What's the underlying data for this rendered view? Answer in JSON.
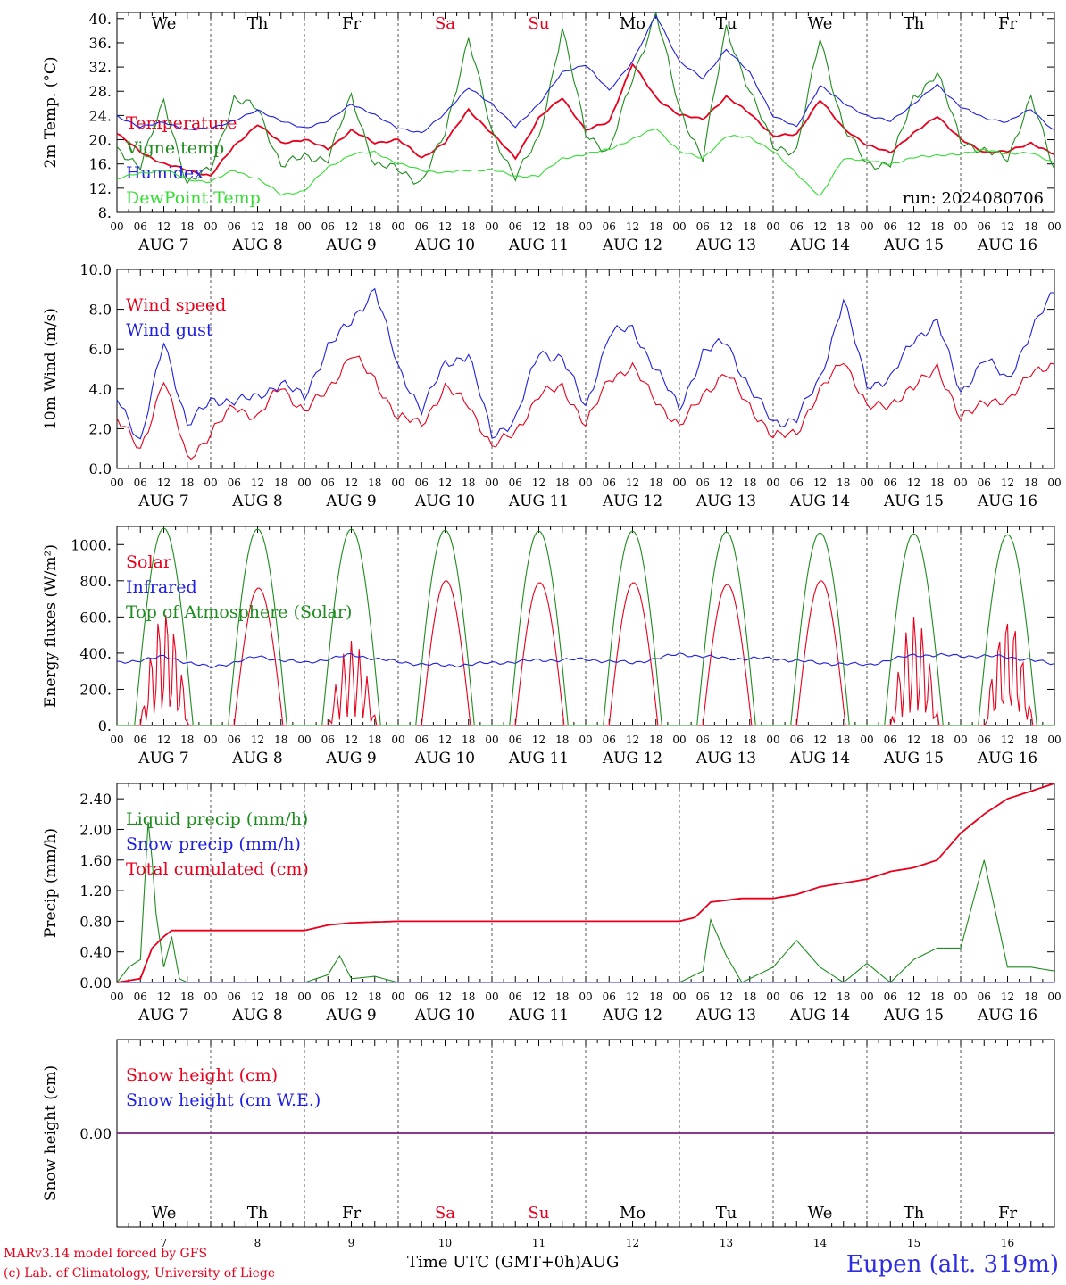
{
  "run_label": "run: 2024080706",
  "days": {
    "weekdays": [
      "We",
      "Th",
      "Fr",
      "Sa",
      "Su",
      "Mo",
      "Tu",
      "We",
      "Th",
      "Fr"
    ],
    "weekend_flags": [
      false,
      false,
      false,
      true,
      true,
      false,
      false,
      false,
      false,
      false
    ],
    "date_labels": [
      "AUG  7",
      "AUG  8",
      "AUG  9",
      "AUG 10",
      "AUG 11",
      "AUG 12",
      "AUG 13",
      "AUG 14",
      "AUG 15",
      "AUG 16"
    ],
    "day_numbers": [
      "7",
      "8",
      "9",
      "10",
      "11",
      "12",
      "13",
      "14",
      "15",
      "16"
    ],
    "hour_ticks": [
      "00",
      "06",
      "12",
      "18"
    ],
    "final_tick": "00"
  },
  "colors": {
    "red": "#e8001c",
    "blue": "#2020e0",
    "green": "#1e8c1e",
    "lightgreen": "#33dd33",
    "purple": "#7a1f7a",
    "grid": "#555555"
  },
  "footer": {
    "credit_line1": "MARv3.14 model forced by GFS",
    "credit_line2": "(c) Lab. of Climatology, University of Liege",
    "x_title": "Time UTC (GMT+0h)AUG",
    "station": "Eupen (alt. 319m)"
  },
  "chart_data": [
    {
      "id": "temp",
      "type": "line",
      "ylabel": "2m Temp. (°C)",
      "ylim": [
        8,
        41
      ],
      "yticks": [
        "8.",
        "12.",
        "16.",
        "20.",
        "24.",
        "28.",
        "32.",
        "36.",
        "40."
      ],
      "grid": "vertical day separators",
      "legend_position": "left",
      "x_unit": "hours since 2024-08-07 00 UTC",
      "series": [
        {
          "name": "Temperature",
          "color": "red",
          "x": [
            0,
            6,
            12,
            18,
            24,
            30,
            36,
            42,
            48,
            54,
            60,
            66,
            72,
            78,
            84,
            90,
            96,
            102,
            108,
            114,
            120,
            126,
            132,
            138,
            144,
            150,
            156,
            162,
            168,
            174,
            180,
            186,
            192,
            198,
            204,
            210,
            216,
            222,
            228,
            234,
            240
          ],
          "y": [
            21,
            18,
            16,
            15,
            14,
            19,
            22.5,
            19.5,
            20,
            18.5,
            21.5,
            19.5,
            20,
            17,
            19.5,
            25,
            21,
            17,
            23.5,
            27,
            21.5,
            23,
            32.5,
            27,
            24,
            23.5,
            27,
            24.5,
            20.5,
            21,
            26.5,
            22,
            19,
            18,
            21,
            24,
            20,
            18,
            18,
            19.5,
            17.5
          ]
        },
        {
          "name": "Vigne temp",
          "color": "green",
          "x": [
            0,
            6,
            12,
            18,
            24,
            30,
            36,
            42,
            48,
            54,
            60,
            66,
            72,
            78,
            84,
            90,
            96,
            102,
            108,
            114,
            120,
            126,
            132,
            138,
            144,
            150,
            156,
            162,
            168,
            174,
            180,
            186,
            192,
            198,
            204,
            210,
            216,
            222,
            228,
            234,
            240
          ],
          "y": [
            18,
            16,
            26,
            13,
            15,
            27,
            25,
            16,
            17,
            17,
            27,
            16,
            15,
            13,
            21,
            37,
            21,
            14,
            20,
            38.5,
            21,
            18,
            30,
            41,
            25,
            17,
            38.5,
            28,
            19,
            18,
            37,
            22,
            16,
            16,
            27,
            31,
            20,
            18,
            17,
            27,
            15
          ]
        },
        {
          "name": "Humidex",
          "color": "blue",
          "x": [
            0,
            6,
            12,
            18,
            24,
            30,
            36,
            42,
            48,
            54,
            60,
            66,
            72,
            78,
            84,
            90,
            96,
            102,
            108,
            114,
            120,
            126,
            132,
            138,
            144,
            150,
            156,
            162,
            168,
            174,
            180,
            186,
            192,
            198,
            204,
            210,
            216,
            222,
            228,
            234,
            240
          ],
          "y": [
            24,
            22,
            23,
            21.5,
            22,
            23,
            25,
            23,
            22,
            23,
            26,
            24,
            22,
            21,
            24.5,
            28.5,
            26,
            22,
            26,
            31,
            32.5,
            28,
            33,
            40.5,
            33,
            30,
            35,
            31,
            24,
            22,
            29,
            26,
            24,
            23,
            26,
            29,
            25.5,
            23.5,
            23,
            25,
            21.5
          ]
        },
        {
          "name": "DewPoint Temp",
          "color": "lightgreen",
          "x": [
            0,
            6,
            12,
            18,
            24,
            30,
            36,
            42,
            48,
            54,
            60,
            66,
            72,
            78,
            84,
            90,
            96,
            102,
            108,
            114,
            120,
            126,
            132,
            138,
            144,
            150,
            156,
            162,
            168,
            174,
            180,
            186,
            192,
            198,
            204,
            210,
            216,
            222,
            228,
            234,
            240
          ],
          "y": [
            13.5,
            14.5,
            15,
            13.5,
            13,
            15,
            13.5,
            11,
            11.5,
            15.5,
            17.5,
            18,
            16,
            15,
            14.5,
            15,
            15,
            14,
            14,
            17,
            17.5,
            18.5,
            20,
            22,
            18,
            17,
            20.5,
            20.5,
            18,
            14.5,
            10.5,
            17,
            16.5,
            16,
            17,
            17.5,
            17.5,
            18.5,
            17.5,
            18,
            16
          ]
        }
      ]
    },
    {
      "id": "wind",
      "type": "line",
      "ylabel": "10m Wind (m/s)",
      "ylim": [
        0,
        10
      ],
      "yticks": [
        "0.0",
        "2.0",
        "4.0",
        "6.0",
        "8.0",
        "10.0"
      ],
      "reference_line": 5,
      "legend_position": "left",
      "x_unit": "hours since 2024-08-07 00 UTC",
      "series": [
        {
          "name": "Wind speed",
          "color": "red",
          "x": [
            0,
            6,
            12,
            18,
            24,
            30,
            36,
            42,
            48,
            54,
            60,
            66,
            72,
            78,
            84,
            90,
            96,
            102,
            108,
            114,
            120,
            126,
            132,
            138,
            144,
            150,
            156,
            162,
            168,
            174,
            180,
            186,
            192,
            198,
            204,
            210,
            216,
            222,
            228,
            234,
            240
          ],
          "y": [
            2.5,
            0.9,
            4.5,
            0.5,
            1.7,
            3.2,
            2.5,
            4.2,
            2.8,
            4.0,
            5.7,
            4.5,
            2.5,
            2.3,
            4.0,
            3.3,
            1.0,
            1.9,
            3.6,
            4.2,
            2.1,
            4.6,
            5.0,
            3.5,
            2.0,
            3.8,
            4.7,
            3.2,
            1.5,
            1.9,
            3.8,
            5.6,
            3.0,
            3.3,
            4.0,
            5.2,
            2.4,
            3.5,
            3.2,
            5.0,
            5.0
          ]
        },
        {
          "name": "Wind gust",
          "color": "blue",
          "x": [
            0,
            6,
            12,
            18,
            24,
            30,
            36,
            42,
            48,
            54,
            60,
            66,
            72,
            78,
            84,
            90,
            96,
            102,
            108,
            114,
            120,
            126,
            132,
            138,
            144,
            150,
            156,
            162,
            168,
            174,
            180,
            186,
            192,
            198,
            204,
            210,
            216,
            222,
            228,
            234,
            240
          ],
          "y": [
            3.5,
            1.4,
            6.3,
            2.3,
            3.3,
            3.5,
            3.5,
            4.4,
            3.5,
            6.2,
            7.3,
            9.1,
            5.0,
            3.0,
            5.2,
            5.8,
            1.6,
            2.5,
            5.8,
            5.6,
            3.0,
            6.8,
            7.0,
            5.0,
            3.0,
            5.8,
            6.4,
            4.0,
            2.3,
            2.5,
            4.5,
            8.5,
            4.2,
            4.5,
            6.5,
            7.4,
            3.8,
            5.5,
            4.5,
            6.8,
            9.0
          ]
        }
      ]
    },
    {
      "id": "flux",
      "type": "line",
      "ylabel": "Energy fluxes (W/m²)",
      "ylim": [
        0,
        1100
      ],
      "yticks": [
        "0.",
        "200.",
        "400.",
        "600.",
        "800.",
        "1000."
      ],
      "legend_position": "left",
      "x_unit": "hours since 2024-08-07 00 UTC",
      "series": [
        {
          "name": "Solar",
          "color": "red",
          "daily_peak": [
            650,
            760,
            470,
            800,
            790,
            790,
            780,
            800,
            620,
            620
          ]
        },
        {
          "name": "Infrared",
          "color": "blue",
          "x": [
            0,
            12,
            24,
            36,
            48,
            60,
            72,
            84,
            96,
            108,
            120,
            132,
            144,
            156,
            168,
            180,
            192,
            204,
            216,
            228,
            240
          ],
          "y": [
            345,
            380,
            320,
            380,
            345,
            390,
            350,
            330,
            345,
            360,
            365,
            345,
            395,
            370,
            370,
            345,
            335,
            390,
            385,
            380,
            340
          ]
        },
        {
          "name": "Top of Atmosphere (Solar)",
          "color": "green",
          "daily_peak": [
            1090,
            1085,
            1085,
            1080,
            1075,
            1075,
            1070,
            1065,
            1060,
            1055
          ]
        }
      ]
    },
    {
      "id": "precip",
      "type": "line",
      "ylabel": "Precip (mm/h)",
      "ylim": [
        0,
        2.6
      ],
      "yticks": [
        "0.00",
        "0.40",
        "0.80",
        "1.20",
        "1.60",
        "2.00",
        "2.40"
      ],
      "legend_position": "left",
      "x_unit": "hours since 2024-08-07 00 UTC",
      "series": [
        {
          "name": "Liquid precip (mm/h)",
          "color": "green",
          "x": [
            0,
            3,
            6,
            8,
            9,
            10,
            12,
            14,
            16,
            18,
            24,
            48,
            54,
            57,
            60,
            66,
            72,
            144,
            150,
            152,
            156,
            160,
            168,
            174,
            180,
            186,
            192,
            198,
            204,
            210,
            216,
            222,
            228,
            234,
            240
          ],
          "y": [
            0,
            0.2,
            0.3,
            2.1,
            1.6,
            0.9,
            0.2,
            0.6,
            0.05,
            0,
            0,
            0,
            0.1,
            0.35,
            0.05,
            0.08,
            0,
            0,
            0.15,
            0.82,
            0.35,
            0,
            0.2,
            0.55,
            0.2,
            0,
            0.25,
            0,
            0.3,
            0.45,
            0.45,
            1.6,
            0.2,
            0.2,
            0.15
          ]
        },
        {
          "name": "Snow precip (mm/h)",
          "color": "blue",
          "x": [
            0,
            240
          ],
          "y": [
            0,
            0
          ]
        },
        {
          "name": "Total cumulated (cm)",
          "color": "red",
          "x": [
            0,
            6,
            9,
            12,
            14,
            48,
            54,
            60,
            72,
            96,
            120,
            144,
            148,
            152,
            160,
            168,
            174,
            180,
            186,
            192,
            198,
            204,
            210,
            216,
            222,
            228,
            234,
            240
          ],
          "y": [
            0,
            0.05,
            0.45,
            0.6,
            0.68,
            0.68,
            0.75,
            0.78,
            0.8,
            0.8,
            0.8,
            0.8,
            0.85,
            1.05,
            1.1,
            1.1,
            1.15,
            1.25,
            1.3,
            1.35,
            1.45,
            1.5,
            1.6,
            1.95,
            2.2,
            2.4,
            2.5,
            2.6
          ]
        }
      ]
    },
    {
      "id": "snow",
      "type": "line",
      "ylabel": "Snow height (cm)",
      "ylim": [
        -1,
        1
      ],
      "yticks": [
        "0.00"
      ],
      "legend_position": "left",
      "x_unit": "hours since 2024-08-07 00 UTC",
      "series": [
        {
          "name": "Snow height (cm)",
          "color": "red",
          "x": [
            0,
            240
          ],
          "y": [
            0,
            0
          ]
        },
        {
          "name": "Snow height (cm W.E.)",
          "color": "blue",
          "x": [
            0,
            240
          ],
          "y": [
            0,
            0
          ]
        }
      ]
    }
  ]
}
